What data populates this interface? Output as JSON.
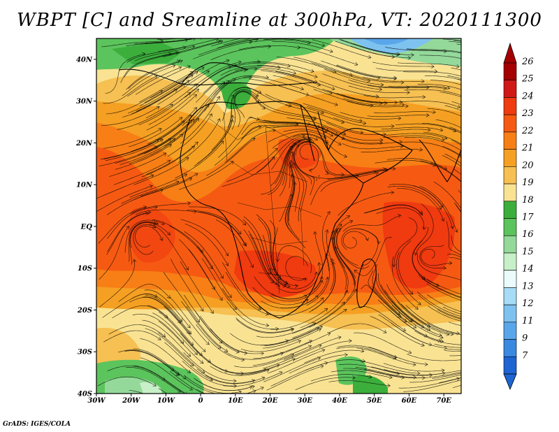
{
  "title": "WBPT [C] and Sreamline at 300hPa, VT: 2020111300",
  "footer": "GrADS: IGES/COLA",
  "map": {
    "lat_labels": [
      "40N",
      "30N",
      "20N",
      "10N",
      "EQ",
      "10S",
      "20S",
      "30S",
      "40S"
    ],
    "lon_labels": [
      "30W",
      "20W",
      "10W",
      "0",
      "10E",
      "20E",
      "30E",
      "40E",
      "50E",
      "60E",
      "70E"
    ],
    "lat_range": [
      -40,
      45
    ],
    "lon_range": [
      -30,
      75
    ]
  },
  "colorbar": {
    "levels": [
      "26",
      "25",
      "24",
      "23",
      "22",
      "21",
      "20",
      "19",
      "18",
      "17",
      "16",
      "15",
      "14",
      "13",
      "12",
      "11",
      "9",
      "7"
    ],
    "colors": [
      "#a50000",
      "#d01818",
      "#f03a10",
      "#f65a12",
      "#f77f16",
      "#f5a023",
      "#f6c052",
      "#f9e393",
      "#3cae3c",
      "#5cc45c",
      "#94d99a",
      "#c8f0c8",
      "#e9fbfb",
      "#a6dcf6",
      "#7ec2f0",
      "#5aa6ea",
      "#3a88e0",
      "#1e64d2"
    ]
  }
}
